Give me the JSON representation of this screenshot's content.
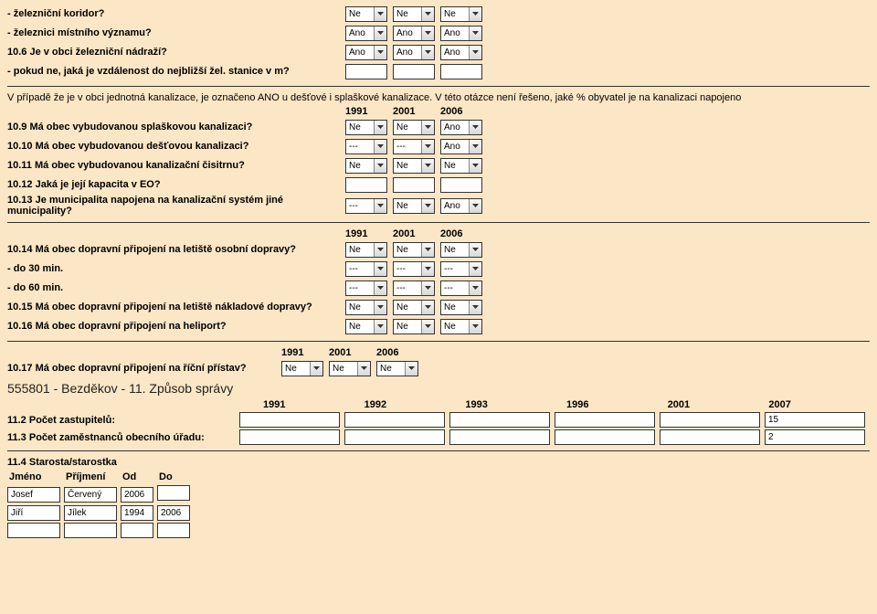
{
  "colors": {
    "background": "#fbe6c6",
    "field_bg": "#ffffff",
    "border": "#333333",
    "text": "#000000"
  },
  "top": {
    "q_corridor": "- železniční koridor?",
    "q_local_rail": "- železnici místního významu?",
    "q_station": "10.6 Je v obci železniční nádraží?",
    "q_distance": "- pokud ne, jaká je vzdálenost do nejbližší žel. stanice v m?",
    "corridor": [
      "Ne",
      "Ne",
      "Ne"
    ],
    "local_rail": [
      "Ano",
      "Ano",
      "Ano"
    ],
    "station": [
      "Ano",
      "Ano",
      "Ano"
    ],
    "distance": [
      "",
      "",
      ""
    ]
  },
  "sewer": {
    "note": "V případě že je v obci jednotná kanalizace, je označeno ANO u dešťové i splaškové kanalizace. V této otázce není řešeno, jaké % obyvatel je na kanalizaci napojeno",
    "years": [
      "1991",
      "2001",
      "2006"
    ],
    "q9": "10.9 Má obec vybudovanou splaškovou kanalizaci?",
    "q10": "10.10 Má obec vybudovanou dešťovou kanalizaci?",
    "q11": "10.11 Má obec vybudovanou kanalizační čisitrnu?",
    "q12": "10.12 Jaká je její kapacita v EO?",
    "q13": "10.13 Je municipalita napojena na kanalizační systém jiné municipality?",
    "r9": [
      "Ne",
      "Ne",
      "Ano"
    ],
    "r10": [
      "---",
      "---",
      "Ano"
    ],
    "r11": [
      "Ne",
      "Ne",
      "Ne"
    ],
    "r12": [
      "",
      "",
      ""
    ],
    "r13": [
      "---",
      "Ne",
      "Ano"
    ]
  },
  "air": {
    "years": [
      "1991",
      "2001",
      "2006"
    ],
    "q14": "10.14 Má obec dopravní připojení na letiště osobní dopravy?",
    "q30": "- do 30 min.",
    "q60": "- do 60 min.",
    "q15": "10.15 Má obec dopravní připojení na letiště nákladové dopravy?",
    "q16": "10.16 Má obec dopravní připojení na heliport?",
    "r14": [
      "Ne",
      "Ne",
      "Ne"
    ],
    "r30": [
      "---",
      "---",
      "---"
    ],
    "r60": [
      "---",
      "---",
      "---"
    ],
    "r15": [
      "Ne",
      "Ne",
      "Ne"
    ],
    "r16": [
      "Ne",
      "Ne",
      "Ne"
    ]
  },
  "port": {
    "years": [
      "1991",
      "2001",
      "2006"
    ],
    "q17": "10.17 Má obec dopravní připojení na říční přístav?",
    "r17": [
      "Ne",
      "Ne",
      "Ne"
    ]
  },
  "gov": {
    "title": "555801 - Bezděkov - 11. Způsob správy",
    "years": [
      "1991",
      "1992",
      "1993",
      "1996",
      "2001",
      "2007"
    ],
    "q_reps": "11.2 Počet zastupitelů:",
    "q_emp": "11.3 Počet zaměstnanců obecního úřadu:",
    "reps": [
      "",
      "",
      "",
      "",
      "",
      "15"
    ],
    "emp": [
      "",
      "",
      "",
      "",
      "",
      "2"
    ]
  },
  "mayor": {
    "title": "11.4 Starosta/starostka",
    "headers": {
      "first": "Jméno",
      "last": "Příjmení",
      "from": "Od",
      "to": "Do"
    },
    "rows": [
      {
        "first": "Josef",
        "last": "Červený",
        "from": "2006",
        "to": ""
      },
      {
        "first": "Jiří",
        "last": "Jílek",
        "from": "1994",
        "to": "2006"
      },
      {
        "first": "",
        "last": "",
        "from": "",
        "to": ""
      }
    ]
  }
}
